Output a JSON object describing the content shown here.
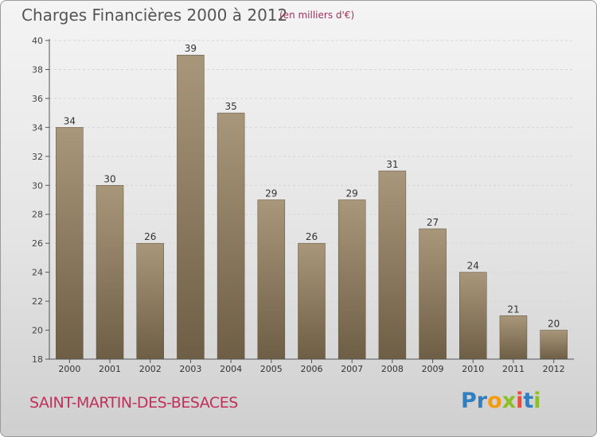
{
  "title": "Charges Financières 2000 à 2012",
  "subtitle": "(en milliers d'€)",
  "commune": "SAINT-MARTIN-DES-BESACES",
  "logo": {
    "text": "Proxiti",
    "letters": [
      {
        "ch": "P",
        "color": "#2f7fc1"
      },
      {
        "ch": "r",
        "color": "#2f7fc1"
      },
      {
        "ch": "o",
        "color": "#f39c12"
      },
      {
        "ch": "x",
        "color": "#8cbf26"
      },
      {
        "ch": "i",
        "color": "#e74c3c"
      },
      {
        "ch": "t",
        "color": "#2f7fc1"
      },
      {
        "ch": "i",
        "color": "#8cbf26"
      }
    ]
  },
  "chart_data": {
    "type": "bar",
    "title": "Charges Financières 2000 à 2012",
    "subtitle": "(en milliers d'€)",
    "categories": [
      "2000",
      "2001",
      "2002",
      "2003",
      "2004",
      "2005",
      "2006",
      "2007",
      "2008",
      "2009",
      "2010",
      "2011",
      "2012"
    ],
    "values": [
      34,
      30,
      26,
      39,
      35,
      29,
      26,
      29,
      31,
      27,
      24,
      21,
      20
    ],
    "ylim": [
      18,
      40
    ],
    "yticks": [
      18,
      20,
      22,
      24,
      26,
      28,
      30,
      32,
      34,
      36,
      38,
      40
    ],
    "grid": true,
    "colors": {
      "bar_top": "#a8977a",
      "bar_bottom": "#6e5e45"
    }
  }
}
